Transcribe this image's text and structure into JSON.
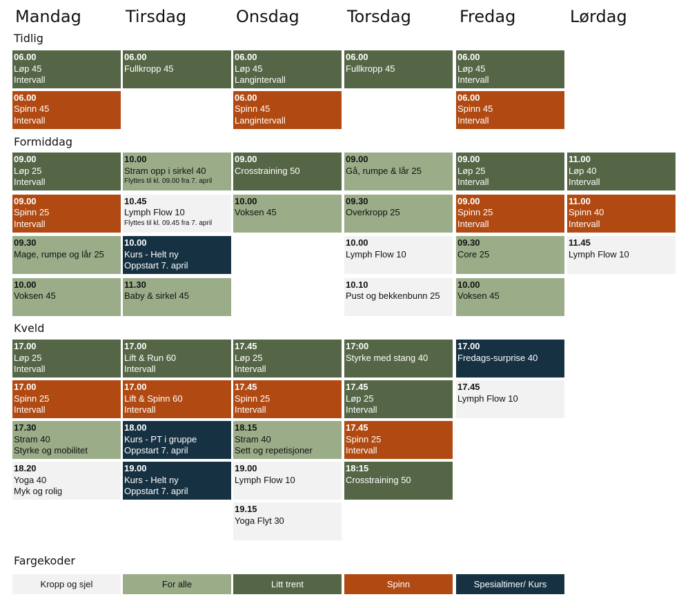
{
  "days": [
    "Mandag",
    "Tirsdag",
    "Onsdag",
    "Torsdag",
    "Fredag",
    "Lørdag"
  ],
  "colors": {
    "litt-trent": "#556646",
    "spinn": "#b04a12",
    "for-alle": "#9aad88",
    "kropp": "#f2f2f2",
    "kurs": "#163142"
  },
  "sections": [
    {
      "label": "Tidlig",
      "rows": [
        [
          {
            "type": "litt-trent",
            "time": "06.00",
            "lines": [
              "Løp 45",
              "Intervall"
            ]
          },
          {
            "type": "litt-trent",
            "time": "06.00",
            "lines": [
              "Fullkropp 45"
            ]
          },
          {
            "type": "litt-trent",
            "time": "06.00",
            "lines": [
              "Løp 45",
              "Langintervall"
            ]
          },
          {
            "type": "litt-trent",
            "time": "06.00",
            "lines": [
              "Fullkropp 45"
            ]
          },
          {
            "type": "litt-trent",
            "time": "06.00",
            "lines": [
              "Løp 45",
              "Intervall"
            ]
          },
          null
        ],
        [
          {
            "type": "spinn",
            "time": "06.00",
            "lines": [
              "Spinn 45",
              "Intervall"
            ]
          },
          null,
          {
            "type": "spinn",
            "time": "06.00",
            "lines": [
              "Spinn 45",
              "Langintervall"
            ]
          },
          null,
          {
            "type": "spinn",
            "time": "06.00",
            "lines": [
              "Spinn 45",
              "Intervall"
            ]
          },
          null
        ]
      ]
    },
    {
      "label": "Formiddag",
      "rows": [
        [
          {
            "type": "litt-trent",
            "time": "09.00",
            "lines": [
              "Løp 25",
              "Intervall"
            ]
          },
          {
            "type": "for-alle",
            "time": "10.00",
            "lines": [
              "Stram opp i sirkel 40"
            ],
            "note": "Flyttes til kl. 09.00 fra 7. april"
          },
          {
            "type": "litt-trent",
            "time": "09.00",
            "lines": [
              "Crosstraining 50"
            ]
          },
          {
            "type": "for-alle",
            "time": "09.00",
            "lines": [
              "Gå, rumpe & lår 25"
            ]
          },
          {
            "type": "litt-trent",
            "time": "09.00",
            "lines": [
              "Løp 25",
              "Intervall"
            ]
          },
          {
            "type": "litt-trent",
            "time": "11.00",
            "lines": [
              "Løp 40",
              "Intervall"
            ]
          }
        ],
        [
          {
            "type": "spinn",
            "time": "09.00",
            "lines": [
              "Spinn 25",
              "Intervall"
            ]
          },
          {
            "type": "kropp",
            "time": "10.45",
            "lines": [
              "Lymph Flow 10"
            ],
            "note": "Flyttes til kl. 09.45 fra 7. april"
          },
          {
            "type": "for-alle",
            "time": "10.00",
            "lines": [
              "Voksen 45"
            ]
          },
          {
            "type": "for-alle",
            "time": "09.30",
            "lines": [
              "Overkropp  25"
            ]
          },
          {
            "type": "spinn",
            "time": "09.00",
            "lines": [
              "Spinn 25",
              "Intervall"
            ]
          },
          {
            "type": "spinn",
            "time": "11.00",
            "lines": [
              "Spinn 40",
              "Intervall"
            ]
          }
        ],
        [
          {
            "type": "for-alle",
            "time": "09.30",
            "lines": [
              "Mage, rumpe og lår 25"
            ]
          },
          {
            "type": "kurs",
            "time": "10.00",
            "lines": [
              "Kurs - Helt ny",
              "Oppstart 7. april"
            ]
          },
          null,
          {
            "type": "kropp",
            "time": "10.00",
            "lines": [
              "Lymph Flow 10"
            ]
          },
          {
            "type": "for-alle",
            "time": "09.30",
            "lines": [
              "Core 25"
            ]
          },
          {
            "type": "kropp",
            "time": "11.45",
            "lines": [
              "Lymph Flow 10"
            ]
          }
        ],
        [
          {
            "type": "for-alle",
            "time": "10.00",
            "lines": [
              "Voksen 45"
            ]
          },
          {
            "type": "for-alle",
            "time": "11.30",
            "lines": [
              "Baby & sirkel 45"
            ]
          },
          null,
          {
            "type": "kropp",
            "time": "10.10",
            "lines": [
              "Pust og bekkenbunn 25"
            ]
          },
          {
            "type": "for-alle",
            "time": "10.00",
            "lines": [
              "Voksen 45"
            ]
          },
          null
        ]
      ]
    },
    {
      "label": "Kveld",
      "rows": [
        [
          {
            "type": "litt-trent",
            "time": "17.00",
            "lines": [
              "Løp 25",
              "Intervall"
            ]
          },
          {
            "type": "litt-trent",
            "time": "17.00",
            "lines": [
              "Lift & Run 60",
              "Intervall"
            ]
          },
          {
            "type": "litt-trent",
            "time": "17.45",
            "lines": [
              "Løp 25",
              "Intervall"
            ]
          },
          {
            "type": "litt-trent",
            "time": "17:00",
            "lines": [
              "Styrke med stang 40"
            ]
          },
          {
            "type": "kurs",
            "time": "17.00",
            "lines": [
              "Fredags-surprise 40"
            ]
          },
          null
        ],
        [
          {
            "type": "spinn",
            "time": "17.00",
            "lines": [
              "Spinn 25",
              "Intervall"
            ]
          },
          {
            "type": "spinn",
            "time": "17.00",
            "lines": [
              "Lift & Spinn 60",
              "Intervall"
            ]
          },
          {
            "type": "spinn",
            "time": "17.45",
            "lines": [
              "Spinn 25",
              "Intervall"
            ]
          },
          {
            "type": "litt-trent",
            "time": "17.45",
            "lines": [
              "Løp 25",
              "Intervall"
            ]
          },
          {
            "type": "kropp",
            "time": "17.45",
            "lines": [
              "Lymph Flow 10"
            ]
          },
          null
        ],
        [
          {
            "type": "for-alle",
            "time": "17.30",
            "lines": [
              "Stram 40",
              "Styrke og mobilitet"
            ]
          },
          {
            "type": "kurs",
            "time": "18.00",
            "lines": [
              "Kurs - PT i gruppe",
              "Oppstart 7. april"
            ]
          },
          {
            "type": "for-alle",
            "time": "18.15",
            "lines": [
              "Stram 40",
              "Sett og repetisjoner"
            ]
          },
          {
            "type": "spinn",
            "time": "17.45",
            "lines": [
              "Spinn 25",
              "Intervall"
            ]
          },
          null,
          null
        ],
        [
          {
            "type": "kropp",
            "time": "18.20",
            "lines": [
              "Yoga 40",
              "Myk og rolig"
            ]
          },
          {
            "type": "kurs",
            "time": "19.00",
            "lines": [
              "Kurs - Helt ny",
              "Oppstart 7. april"
            ]
          },
          {
            "type": "kropp",
            "time": "19.00",
            "lines": [
              "Lymph Flow 10"
            ]
          },
          {
            "type": "litt-trent",
            "time": "18:15",
            "lines": [
              "Crosstraining 50"
            ]
          },
          null,
          null
        ],
        [
          null,
          null,
          {
            "type": "kropp",
            "time": "19.15",
            "lines": [
              "Yoga Flyt 30"
            ]
          },
          null,
          null,
          null
        ]
      ]
    }
  ],
  "legend": {
    "title": "Fargekoder",
    "items": [
      {
        "type": "kropp",
        "label": "Kropp og sjel"
      },
      {
        "type": "for-alle",
        "label": "For alle"
      },
      {
        "type": "litt-trent",
        "label": "Litt trent"
      },
      {
        "type": "spinn",
        "label": "Spinn"
      },
      {
        "type": "kurs",
        "label": "Spesialtimer/ Kurs"
      }
    ]
  }
}
